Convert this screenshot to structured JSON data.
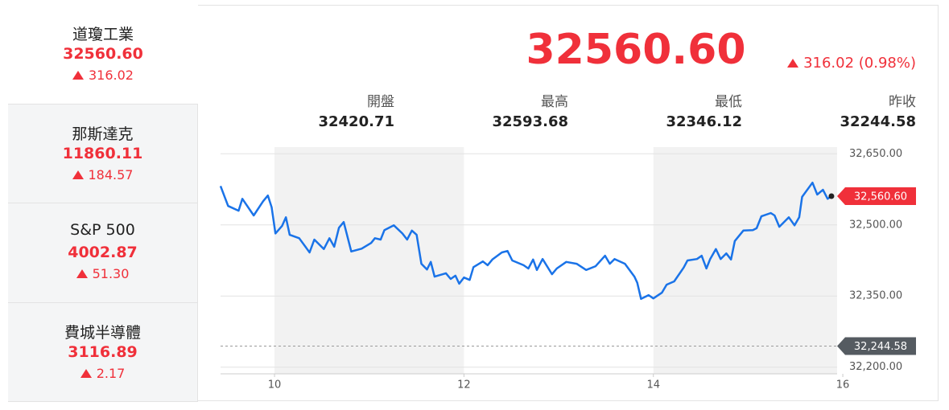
{
  "sidebar": [
    {
      "name": "道瓊工業",
      "price": "32560.60",
      "change": "316.02"
    },
    {
      "name": "那斯達克",
      "price": "11860.11",
      "change": "184.57"
    },
    {
      "name": "S&P 500",
      "price": "4002.87",
      "change": "51.30"
    },
    {
      "name": "費城半導體",
      "price": "3116.89",
      "change": "2.17"
    }
  ],
  "quote": {
    "price": "32560.60",
    "change": "316.02 (0.98%)"
  },
  "stats": [
    {
      "label": "開盤",
      "value": "32420.71"
    },
    {
      "label": "最高",
      "value": "32593.68"
    },
    {
      "label": "最低",
      "value": "32346.12"
    },
    {
      "label": "昨收",
      "value": "32244.58"
    }
  ],
  "chart_data": {
    "type": "line",
    "color": "#1a73e8",
    "grid": true,
    "x": [
      9.43,
      9.51,
      9.62,
      9.66,
      9.78,
      9.88,
      9.93,
      9.97,
      10.01,
      10.08,
      10.12,
      10.16,
      10.26,
      10.37,
      10.42,
      10.52,
      10.58,
      10.63,
      10.68,
      10.73,
      10.81,
      10.92,
      11.02,
      11.06,
      11.12,
      11.16,
      11.26,
      11.35,
      11.4,
      11.45,
      11.5,
      11.55,
      11.61,
      11.65,
      11.69,
      11.81,
      11.86,
      11.91,
      11.95,
      12.0,
      12.06,
      12.1,
      12.2,
      12.25,
      12.3,
      12.4,
      12.46,
      12.51,
      12.63,
      12.68,
      12.73,
      12.77,
      12.83,
      12.93,
      12.98,
      13.08,
      13.19,
      13.29,
      13.39,
      13.49,
      13.54,
      13.59,
      13.7,
      13.8,
      13.83,
      13.87,
      13.95,
      14.0,
      14.09,
      14.14,
      14.22,
      14.32,
      14.36,
      14.46,
      14.51,
      14.56,
      14.6,
      14.66,
      14.71,
      14.77,
      14.82,
      14.86,
      14.95,
      15.05,
      15.09,
      15.14,
      15.24,
      15.28,
      15.33,
      15.43,
      15.49,
      15.54,
      15.57,
      15.68,
      15.73,
      15.79,
      15.84,
      15.88
    ],
    "values": [
      32582,
      32540,
      32530,
      32555,
      32520,
      32550,
      32562,
      32537,
      32482,
      32498,
      32516,
      32479,
      32472,
      32442,
      32469,
      32449,
      32472,
      32454,
      32494,
      32506,
      32444,
      32450,
      32462,
      32472,
      32469,
      32489,
      32499,
      32482,
      32469,
      32488,
      32479,
      32418,
      32406,
      32422,
      32391,
      32398,
      32386,
      32393,
      32376,
      32389,
      32384,
      32411,
      32423,
      32415,
      32427,
      32442,
      32445,
      32425,
      32415,
      32408,
      32427,
      32405,
      32428,
      32396,
      32408,
      32422,
      32418,
      32405,
      32413,
      32435,
      32418,
      32428,
      32418,
      32391,
      32378,
      32344,
      32352,
      32345,
      32357,
      32374,
      32381,
      32410,
      32425,
      32428,
      32435,
      32408,
      32428,
      32449,
      32428,
      32440,
      32427,
      32466,
      32488,
      32489,
      32493,
      32518,
      32525,
      32520,
      32496,
      32516,
      32499,
      32516,
      32559,
      32589,
      32564,
      32574,
      32555,
      32560.6
    ],
    "xlim": [
      9.43,
      15.94
    ],
    "xticks": [
      10,
      12,
      14,
      16
    ],
    "ylim": [
      32186,
      32664
    ],
    "yticks": [
      {
        "value": 32650,
        "label": "32,650.00"
      },
      {
        "value": 32500,
        "label": "32,500.00"
      },
      {
        "value": 32350,
        "label": "32,350.00"
      },
      {
        "value": 32200,
        "label": "32,200.00"
      }
    ],
    "last": {
      "value": 32560.6,
      "label": "32,560.60"
    },
    "previous_close": {
      "value": 32244.58,
      "label": "32,244.58"
    }
  }
}
